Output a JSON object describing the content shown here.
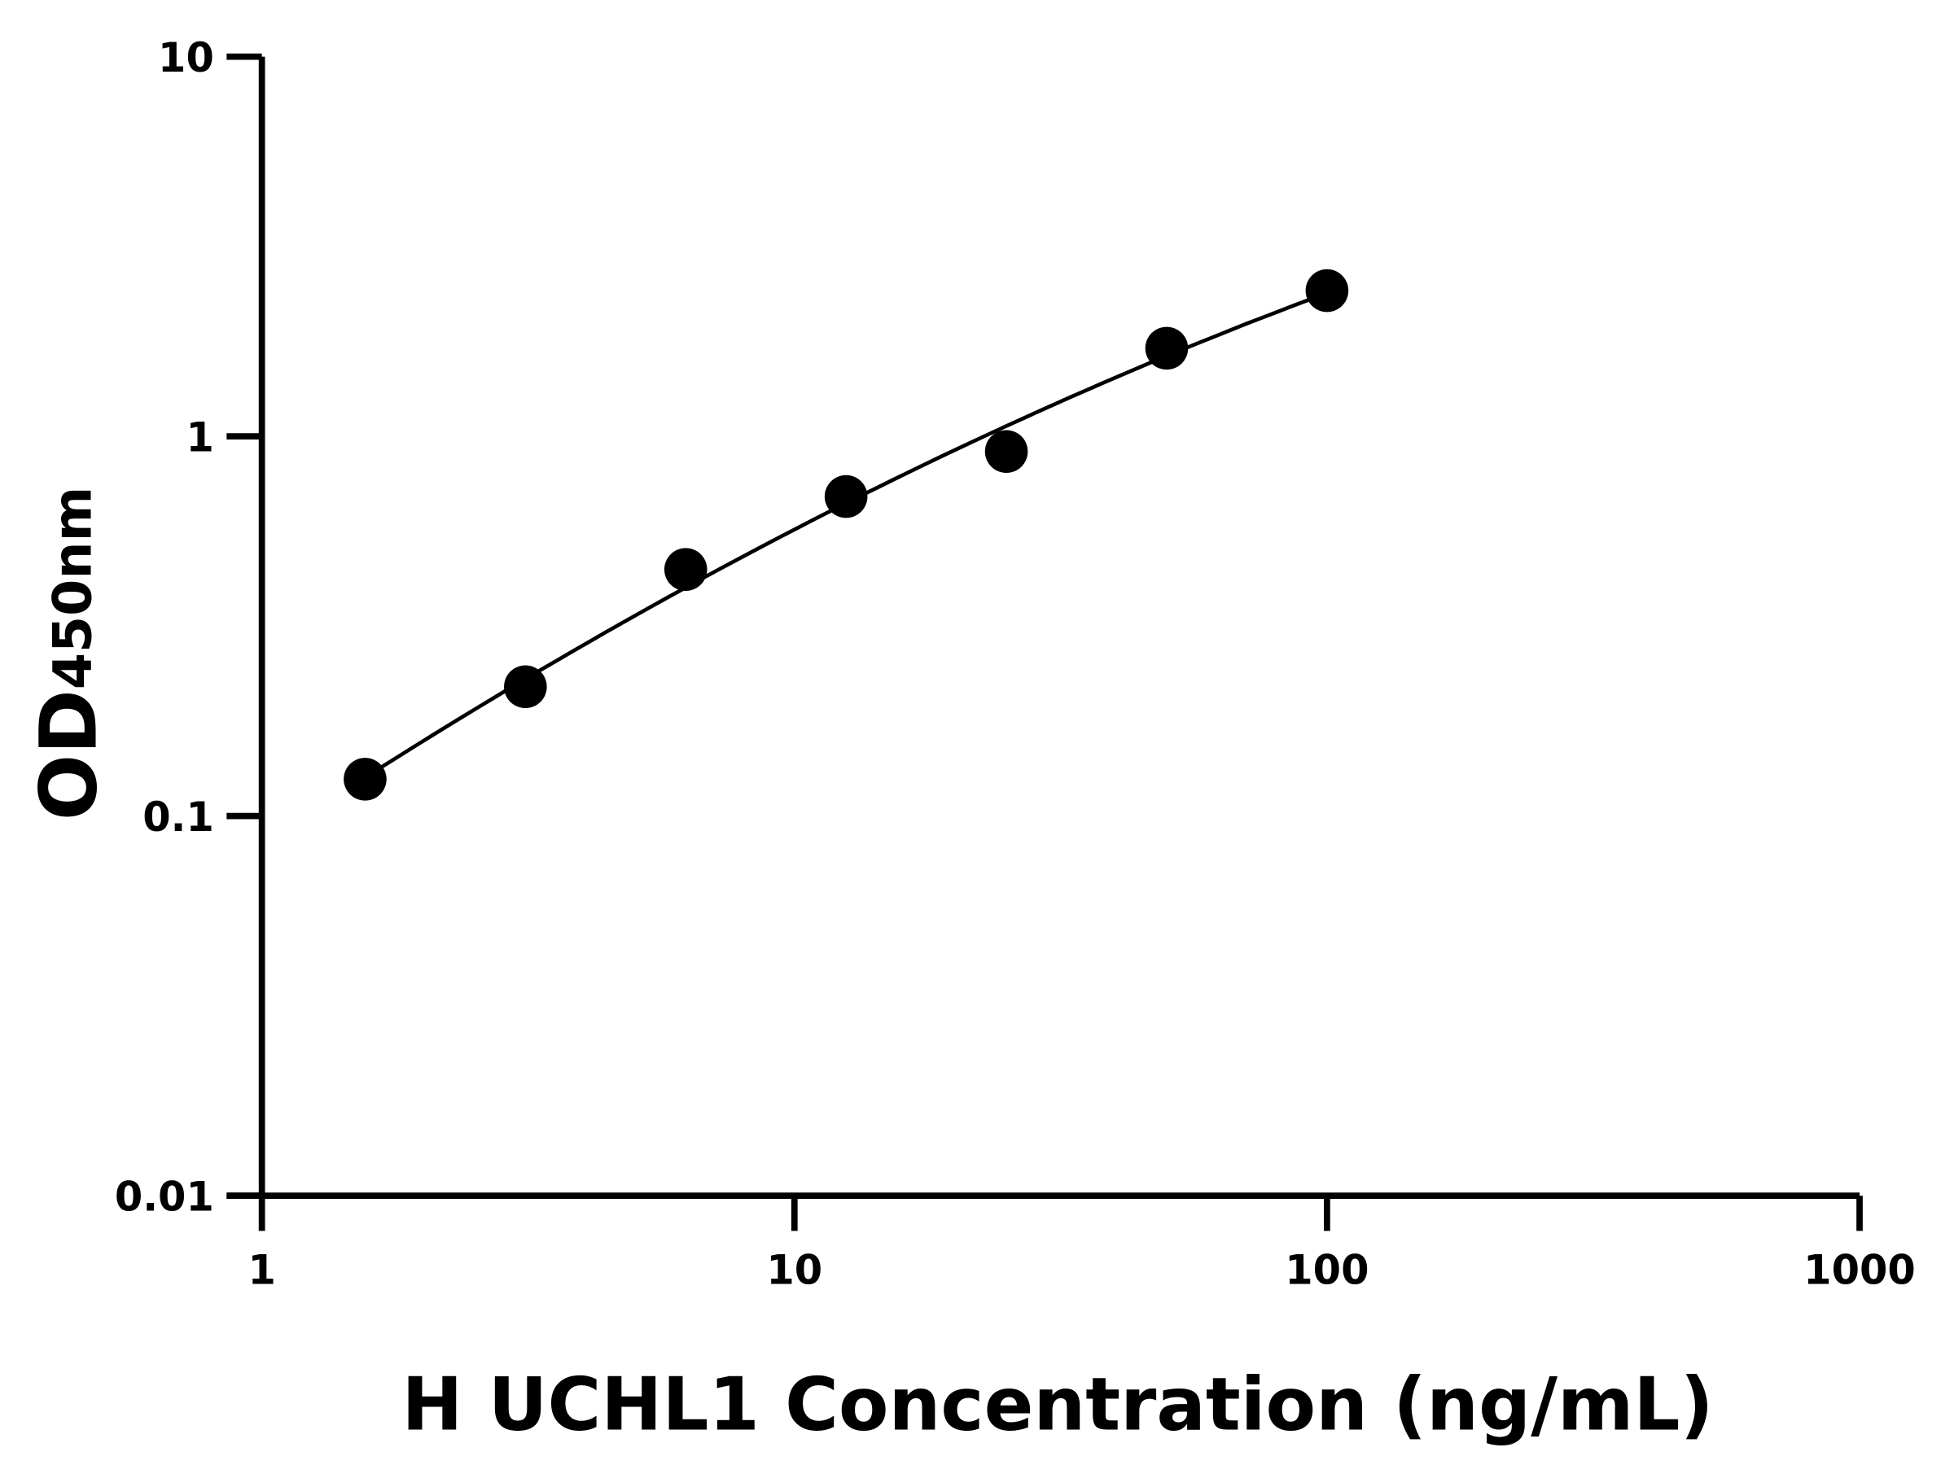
{
  "chart_data": {
    "type": "scatter",
    "xlabel": "H UCHL1 Concentration (ng/mL)",
    "ylabel": "OD",
    "ylabel_subscript": "450nm",
    "xscale": "log",
    "yscale": "log",
    "xlim": [
      1,
      1000
    ],
    "ylim": [
      0.01,
      10
    ],
    "x_ticks": [
      "1",
      "10",
      "100",
      "1000"
    ],
    "y_ticks": [
      "0.01",
      "0.1",
      "1",
      "10"
    ],
    "grid": false,
    "points": {
      "x": [
        1.5625,
        3.125,
        6.25,
        12.5,
        25,
        50,
        100
      ],
      "y": [
        0.125,
        0.219,
        0.446,
        0.694,
        0.912,
        1.706,
        2.42
      ]
    },
    "fit_curve": true,
    "marker_color": "#000000",
    "line_color": "#000000"
  }
}
